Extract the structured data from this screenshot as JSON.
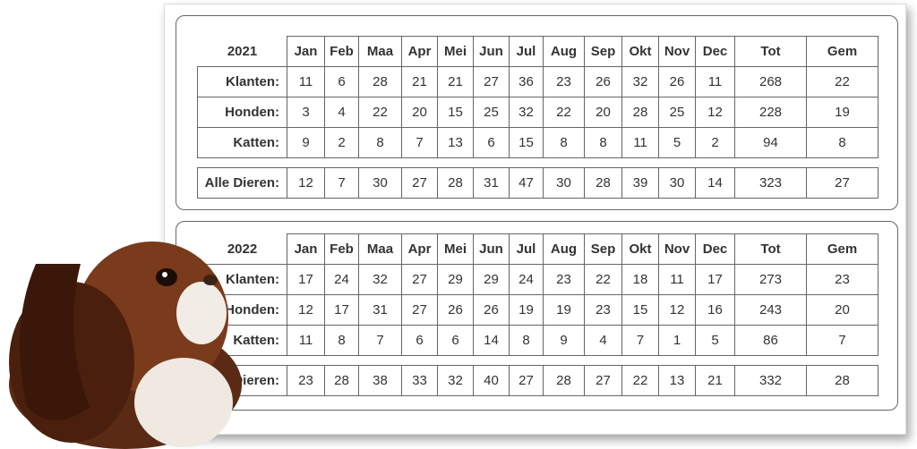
{
  "sheets": [
    {
      "year": "2021",
      "months": [
        "Jan",
        "Feb",
        "Maa",
        "Apr",
        "Mei",
        "Jun",
        "Jul",
        "Aug",
        "Sep",
        "Okt",
        "Nov",
        "Dec"
      ],
      "total_header": "Tot",
      "average_header": "Gem",
      "rows": [
        {
          "label": "Klanten:",
          "values": [
            11,
            6,
            28,
            21,
            21,
            27,
            36,
            23,
            26,
            32,
            26,
            11
          ],
          "total": 268,
          "average": 22
        },
        {
          "label": "Honden:",
          "values": [
            3,
            4,
            22,
            20,
            15,
            25,
            32,
            22,
            20,
            28,
            25,
            12
          ],
          "total": 228,
          "average": 19
        },
        {
          "label": "Katten:",
          "values": [
            9,
            2,
            8,
            7,
            13,
            6,
            15,
            8,
            8,
            11,
            5,
            2
          ],
          "total": 94,
          "average": 8
        }
      ],
      "all": {
        "label": "Alle Dieren:",
        "values": [
          12,
          7,
          30,
          27,
          28,
          31,
          47,
          30,
          28,
          39,
          30,
          14
        ],
        "total": 323,
        "average": 27
      }
    },
    {
      "year": "2022",
      "months": [
        "Jan",
        "Feb",
        "Maa",
        "Apr",
        "Mei",
        "Jun",
        "Jul",
        "Aug",
        "Sep",
        "Okt",
        "Nov",
        "Dec"
      ],
      "total_header": "Tot",
      "average_header": "Gem",
      "rows": [
        {
          "label": "Klanten:",
          "values": [
            17,
            24,
            32,
            27,
            29,
            29,
            24,
            23,
            22,
            18,
            11,
            17
          ],
          "total": 273,
          "average": 23
        },
        {
          "label": "Honden:",
          "values": [
            12,
            17,
            31,
            27,
            26,
            26,
            19,
            19,
            23,
            15,
            12,
            16
          ],
          "total": 243,
          "average": 20
        },
        {
          "label": "Katten:",
          "values": [
            11,
            8,
            7,
            6,
            6,
            14,
            8,
            9,
            4,
            7,
            1,
            5
          ],
          "total": 86,
          "average": 7
        }
      ],
      "all": {
        "label": "Alle Dieren:",
        "values": [
          23,
          28,
          38,
          33,
          32,
          40,
          27,
          28,
          27,
          22,
          13,
          21
        ],
        "total": 332,
        "average": 28
      }
    }
  ]
}
